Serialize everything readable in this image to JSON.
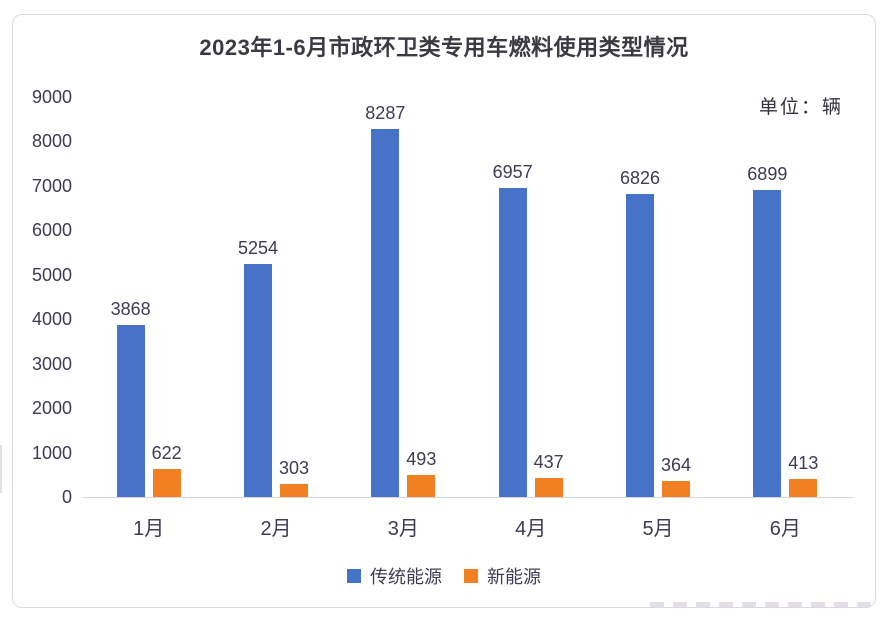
{
  "chart_data": {
    "type": "bar",
    "title": "2023年1-6月市政环卫类专用车燃料使用类型情况",
    "unit_label": "单位：辆",
    "categories": [
      "1月",
      "2月",
      "3月",
      "4月",
      "5月",
      "6月"
    ],
    "series": [
      {
        "name": "传统能源",
        "color": "#4673c8",
        "values": [
          3868,
          5254,
          8287,
          6957,
          6826,
          6899
        ]
      },
      {
        "name": "新能源",
        "color": "#f08022",
        "values": [
          622,
          303,
          493,
          437,
          364,
          413
        ]
      }
    ],
    "ylim": [
      0,
      9000
    ],
    "ytick_step": 1000,
    "yticks": [
      0,
      1000,
      2000,
      3000,
      4000,
      5000,
      6000,
      7000,
      8000,
      9000
    ],
    "grid": false,
    "data_labels": true,
    "legend_position": "bottom"
  }
}
